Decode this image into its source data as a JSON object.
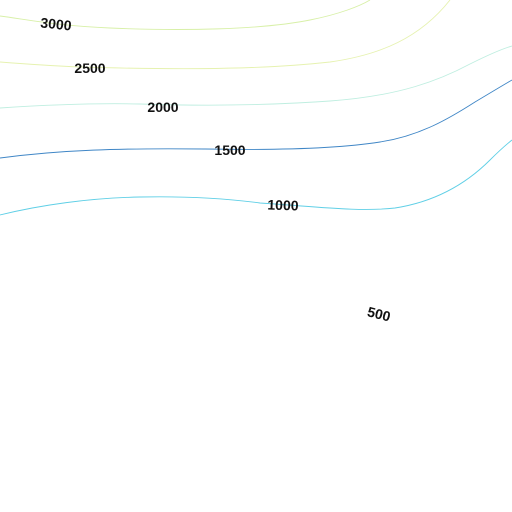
{
  "contour_map": {
    "contours": [
      {
        "value": "3000",
        "color": "#d8f0a8"
      },
      {
        "value": "2500",
        "color": "#e6f2b0"
      },
      {
        "value": "2000",
        "color": "#bfeee0"
      },
      {
        "value": "1500",
        "color": "#3f86c6"
      },
      {
        "value": "1000",
        "color": "#5fcfe6"
      },
      {
        "value": "500",
        "color": "#cfeff5"
      }
    ]
  }
}
